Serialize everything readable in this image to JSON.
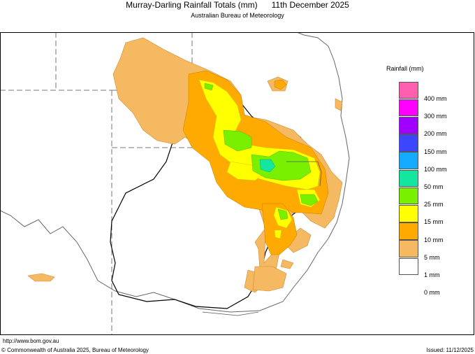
{
  "header": {
    "title": "Murray-Darling Rainfall Totals (mm)      11th December 2025",
    "subtitle": "Australian Bureau of Meteorology"
  },
  "legend": {
    "title": "Rainfall (mm)",
    "items": [
      {
        "label": "400 mm",
        "color": "#ff5fae"
      },
      {
        "label": "300 mm",
        "color": "#ff00ff"
      },
      {
        "label": "200 mm",
        "color": "#a000ff"
      },
      {
        "label": "150 mm",
        "color": "#3c46ff"
      },
      {
        "label": "100 mm",
        "color": "#14aaff"
      },
      {
        "label": "50 mm",
        "color": "#14e6a0"
      },
      {
        "label": "25 mm",
        "color": "#78f000"
      },
      {
        "label": "15 mm",
        "color": "#ffff00"
      },
      {
        "label": "10 mm",
        "color": "#ffaa00"
      },
      {
        "label": "5 mm",
        "color": "#f5b962"
      },
      {
        "label": "1 mm",
        "color": "#ffffff"
      },
      {
        "label": "0 mm",
        "color": "#ffffff"
      }
    ]
  },
  "footer": {
    "url": "http://www.bom.gov.au",
    "copyright": "© Commonwealth of Australia 2025, Bureau of Meteorology",
    "issued": "Issued: 11/12/2025"
  }
}
